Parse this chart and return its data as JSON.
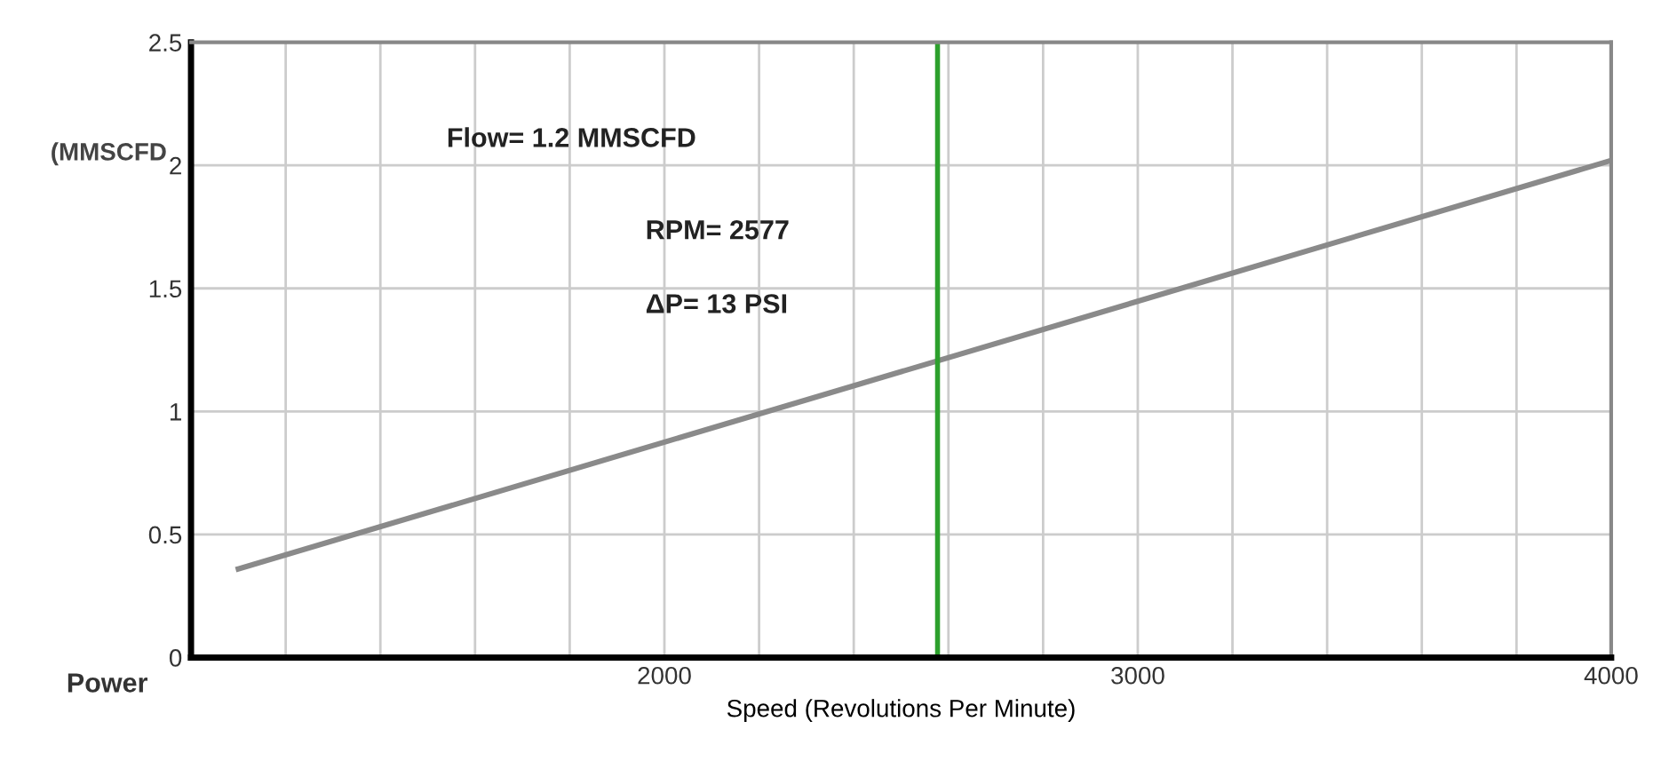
{
  "chart_data": {
    "type": "line",
    "xlabel": "Speed (Revolutions Per Minute)",
    "ylabel": "(MMSCFD",
    "x": [
      1100,
      4000
    ],
    "series": [
      {
        "color": "#8a8a8a",
        "values": [
          0.36,
          2.02
        ]
      }
    ],
    "xlim": [
      1000,
      4000
    ],
    "ylim": [
      0,
      2.5
    ],
    "xticks": [
      {
        "value": 1200,
        "label": null
      },
      {
        "value": 1400,
        "label": null
      },
      {
        "value": 1600,
        "label": null
      },
      {
        "value": 1800,
        "label": null
      },
      2000,
      {
        "value": 2200,
        "label": null
      },
      {
        "value": 2400,
        "label": null
      },
      {
        "value": 2600,
        "label": null
      },
      {
        "value": 2800,
        "label": null
      },
      3000,
      {
        "value": 3200,
        "label": null
      },
      {
        "value": 3400,
        "label": null
      },
      {
        "value": 3600,
        "label": null
      },
      {
        "value": 3800,
        "label": null
      },
      4000
    ],
    "yticks": [
      0,
      0.5,
      1,
      1.5,
      2,
      2.5
    ],
    "grid": true,
    "ref_lines": [
      {
        "axis": "x",
        "value": 2577,
        "color": "#2ca02c"
      }
    ],
    "annotations": [
      "Flow= 1.2 MMSCFD",
      "RPM= 2577",
      "ΔP= 13 PSI",
      "Power"
    ]
  }
}
